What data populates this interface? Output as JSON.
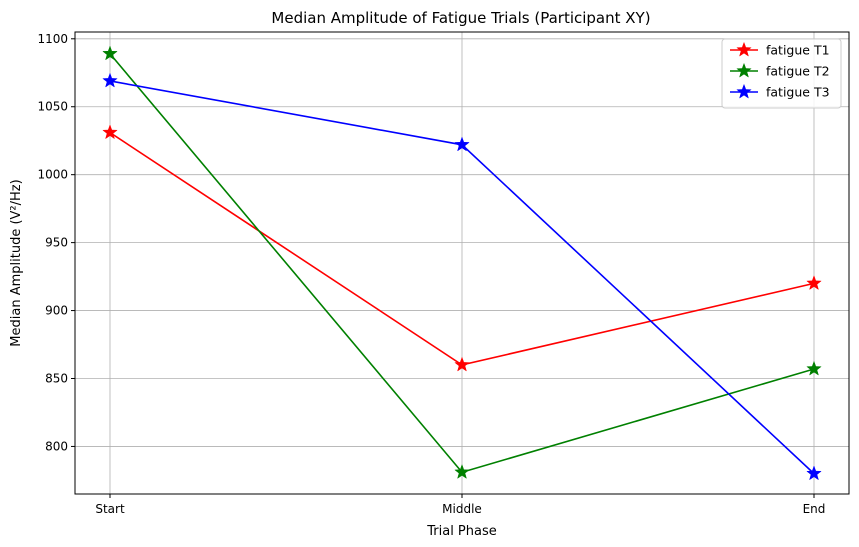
{
  "chart_data": {
    "type": "line",
    "title": "Median Amplitude of Fatigue Trials (Participant XY)",
    "xlabel": "Trial Phase",
    "ylabel": "Median Amplitude (V²/Hz)",
    "categories": [
      "Start",
      "Middle",
      "End"
    ],
    "ylim": [
      765,
      1105
    ],
    "yticks": [
      800,
      850,
      900,
      950,
      1000,
      1050,
      1100
    ],
    "grid": true,
    "legend_position": "top-right",
    "marker": "star",
    "series": [
      {
        "name": "fatigue T1",
        "color": "#ff0000",
        "values": [
          1031,
          860,
          920
        ]
      },
      {
        "name": "fatigue T2",
        "color": "#008000",
        "values": [
          1089,
          781,
          857
        ]
      },
      {
        "name": "fatigue T3",
        "color": "#0000ff",
        "values": [
          1069,
          1022,
          780
        ]
      }
    ]
  }
}
